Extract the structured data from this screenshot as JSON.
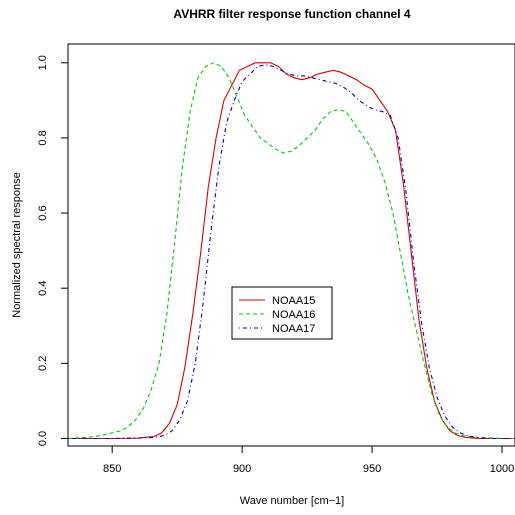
{
  "chart_data": {
    "type": "line",
    "title": "AVHRR filter response function channel 4",
    "xlabel": "Wave number [cm−1]",
    "ylabel": "Normalized spectral response",
    "xlim": [
      833,
      1005
    ],
    "ylim": [
      -0.02,
      1.05
    ],
    "xticks": [
      850,
      900,
      950,
      1000
    ],
    "yticks": [
      0.0,
      0.2,
      0.4,
      0.6,
      0.8,
      1.0
    ],
    "ytick_labels": [
      "0.0",
      "0.2",
      "0.4",
      "0.6",
      "0.8",
      "1.0"
    ],
    "grid": false,
    "legend_position": "center-left",
    "series": [
      {
        "name": "NOAA15",
        "color": "#dd0000",
        "dash": "solid",
        "x": [
          833,
          840,
          850,
          860,
          866,
          869,
          872,
          875,
          878,
          881,
          884,
          887,
          890,
          893,
          896,
          899,
          902,
          905,
          908,
          911,
          914,
          917,
          920,
          923,
          926,
          929,
          932,
          935,
          938,
          941,
          944,
          947,
          950,
          953,
          956,
          959,
          962,
          965,
          968,
          971,
          974,
          977,
          980,
          983,
          986,
          989,
          992,
          995,
          1000,
          1005
        ],
        "y": [
          0.0,
          0.0,
          0.0,
          0.001,
          0.005,
          0.015,
          0.04,
          0.09,
          0.19,
          0.33,
          0.49,
          0.67,
          0.8,
          0.9,
          0.94,
          0.98,
          0.99,
          1.0,
          1.0,
          1.0,
          0.99,
          0.97,
          0.96,
          0.955,
          0.96,
          0.97,
          0.975,
          0.98,
          0.975,
          0.965,
          0.955,
          0.94,
          0.93,
          0.9,
          0.87,
          0.82,
          0.68,
          0.5,
          0.32,
          0.19,
          0.1,
          0.05,
          0.02,
          0.008,
          0.003,
          0.001,
          0.0,
          0.0,
          0.0,
          0.0
        ]
      },
      {
        "name": "NOAA16",
        "color": "#00cc00",
        "dash": "dashed",
        "x": [
          833,
          840,
          845,
          850,
          853,
          856,
          859,
          862,
          865,
          868,
          871,
          874,
          877,
          880,
          883,
          886,
          889,
          892,
          895,
          898,
          901,
          904,
          907,
          910,
          913,
          916,
          919,
          922,
          925,
          928,
          931,
          934,
          937,
          940,
          943,
          946,
          949,
          952,
          955,
          958,
          961,
          964,
          967,
          970,
          973,
          976,
          979,
          982,
          985,
          988,
          991,
          994,
          1000,
          1005
        ],
        "y": [
          0.0,
          0.003,
          0.007,
          0.015,
          0.02,
          0.03,
          0.05,
          0.08,
          0.13,
          0.2,
          0.33,
          0.52,
          0.72,
          0.87,
          0.96,
          0.99,
          1.0,
          0.99,
          0.96,
          0.91,
          0.86,
          0.83,
          0.8,
          0.785,
          0.77,
          0.76,
          0.765,
          0.78,
          0.8,
          0.82,
          0.85,
          0.87,
          0.875,
          0.87,
          0.84,
          0.81,
          0.78,
          0.74,
          0.68,
          0.6,
          0.49,
          0.38,
          0.29,
          0.2,
          0.12,
          0.06,
          0.03,
          0.015,
          0.008,
          0.005,
          0.003,
          0.002,
          0.0,
          0.0
        ]
      },
      {
        "name": "NOAA17",
        "color": "#0000cc",
        "dash": "dashdot",
        "x": [
          833,
          840,
          850,
          860,
          866,
          870,
          873,
          876,
          879,
          882,
          885,
          888,
          891,
          894,
          897,
          900,
          903,
          906,
          909,
          912,
          915,
          918,
          921,
          924,
          927,
          930,
          933,
          936,
          939,
          942,
          945,
          948,
          951,
          954,
          957,
          960,
          963,
          966,
          969,
          972,
          975,
          978,
          981,
          984,
          987,
          990,
          993,
          996,
          1000,
          1005
        ],
        "y": [
          0.0,
          0.0,
          0.0,
          0.001,
          0.003,
          0.008,
          0.02,
          0.05,
          0.1,
          0.2,
          0.36,
          0.55,
          0.72,
          0.84,
          0.9,
          0.95,
          0.97,
          0.99,
          0.995,
          0.99,
          0.98,
          0.97,
          0.965,
          0.965,
          0.96,
          0.955,
          0.95,
          0.945,
          0.935,
          0.92,
          0.9,
          0.885,
          0.875,
          0.87,
          0.86,
          0.8,
          0.66,
          0.47,
          0.31,
          0.19,
          0.11,
          0.06,
          0.03,
          0.015,
          0.007,
          0.003,
          0.001,
          0.0,
          0.0,
          0.0
        ]
      }
    ]
  }
}
